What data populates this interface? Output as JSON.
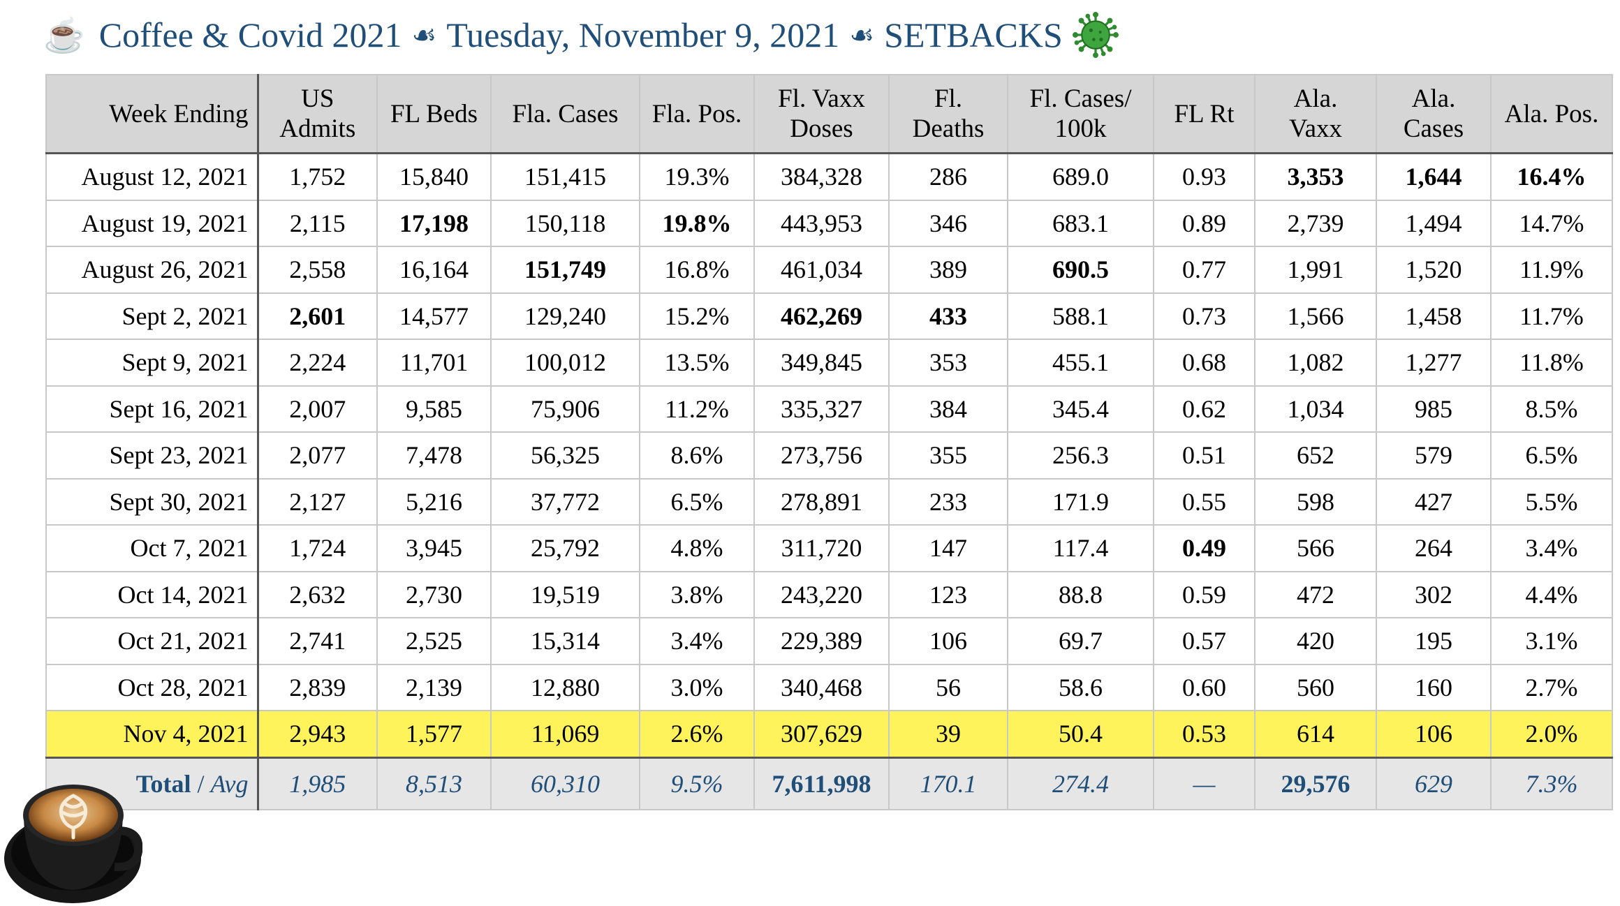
{
  "header": {
    "cup_glyph": "☕",
    "part1": "Coffee & Covid 2021",
    "sep": "☙",
    "part2": "Tuesday, November 9, 2021",
    "part3": "SETBACKS"
  },
  "table": {
    "columns": [
      [
        "Week Ending"
      ],
      [
        "US",
        "Admits"
      ],
      [
        "FL Beds"
      ],
      [
        "Fla. Cases"
      ],
      [
        "Fla. Pos."
      ],
      [
        "Fl. Vaxx",
        "Doses"
      ],
      [
        "Fl.",
        "Deaths"
      ],
      [
        "Fl. Cases/",
        "100k"
      ],
      [
        "FL Rt"
      ],
      [
        "Ala.",
        "Vaxx"
      ],
      [
        "Ala.",
        "Cases"
      ],
      [
        "Ala. Pos."
      ]
    ],
    "rows": [
      {
        "cells": [
          "August 12, 2021",
          "1,752",
          "15,840",
          "151,415",
          "19.3%",
          "384,328",
          "286",
          "689.0",
          "0.93",
          "3,353",
          "1,644",
          "16.4%"
        ],
        "bold": [
          9,
          10,
          11
        ]
      },
      {
        "cells": [
          "August 19, 2021",
          "2,115",
          "17,198",
          "150,118",
          "19.8%",
          "443,953",
          "346",
          "683.1",
          "0.89",
          "2,739",
          "1,494",
          "14.7%"
        ],
        "bold": [
          2,
          4
        ]
      },
      {
        "cells": [
          "August 26, 2021",
          "2,558",
          "16,164",
          "151,749",
          "16.8%",
          "461,034",
          "389",
          "690.5",
          "0.77",
          "1,991",
          "1,520",
          "11.9%"
        ],
        "bold": [
          3,
          7
        ]
      },
      {
        "cells": [
          "Sept 2, 2021",
          "2,601",
          "14,577",
          "129,240",
          "15.2%",
          "462,269",
          "433",
          "588.1",
          "0.73",
          "1,566",
          "1,458",
          "11.7%"
        ],
        "bold": [
          1,
          5,
          6
        ]
      },
      {
        "cells": [
          "Sept 9, 2021",
          "2,224",
          "11,701",
          "100,012",
          "13.5%",
          "349,845",
          "353",
          "455.1",
          "0.68",
          "1,082",
          "1,277",
          "11.8%"
        ],
        "bold": []
      },
      {
        "cells": [
          "Sept 16, 2021",
          "2,007",
          "9,585",
          "75,906",
          "11.2%",
          "335,327",
          "384",
          "345.4",
          "0.62",
          "1,034",
          "985",
          "8.5%"
        ],
        "bold": []
      },
      {
        "cells": [
          "Sept 23, 2021",
          "2,077",
          "7,478",
          "56,325",
          "8.6%",
          "273,756",
          "355",
          "256.3",
          "0.51",
          "652",
          "579",
          "6.5%"
        ],
        "bold": []
      },
      {
        "cells": [
          "Sept 30, 2021",
          "2,127",
          "5,216",
          "37,772",
          "6.5%",
          "278,891",
          "233",
          "171.9",
          "0.55",
          "598",
          "427",
          "5.5%"
        ],
        "bold": []
      },
      {
        "cells": [
          "Oct 7, 2021",
          "1,724",
          "3,945",
          "25,792",
          "4.8%",
          "311,720",
          "147",
          "117.4",
          "0.49",
          "566",
          "264",
          "3.4%"
        ],
        "bold": [
          8
        ]
      },
      {
        "cells": [
          "Oct 14, 2021",
          "2,632",
          "2,730",
          "19,519",
          "3.8%",
          "243,220",
          "123",
          "88.8",
          "0.59",
          "472",
          "302",
          "4.4%"
        ],
        "bold": []
      },
      {
        "cells": [
          "Oct 21, 2021",
          "2,741",
          "2,525",
          "15,314",
          "3.4%",
          "229,389",
          "106",
          "69.7",
          "0.57",
          "420",
          "195",
          "3.1%"
        ],
        "bold": []
      },
      {
        "cells": [
          "Oct 28, 2021",
          "2,839",
          "2,139",
          "12,880",
          "3.0%",
          "340,468",
          "56",
          "58.6",
          "0.60",
          "560",
          "160",
          "2.7%"
        ],
        "bold": []
      },
      {
        "cells": [
          "Nov 4, 2021",
          "2,943",
          "1,577",
          "11,069",
          "2.6%",
          "307,629",
          "39",
          "50.4",
          "0.53",
          "614",
          "106",
          "2.0%"
        ],
        "bold": [],
        "highlight": true
      }
    ],
    "total": {
      "label_total": "Total",
      "label_sep": " / ",
      "label_avg": "Avg",
      "cells": [
        "1,985",
        "8,513",
        "60,310",
        "9.5%",
        "7,611,998",
        "170.1",
        "274.4",
        "—",
        "29,576",
        "629",
        "7.3%"
      ],
      "bold": [
        5,
        9
      ]
    }
  },
  "colors": {
    "title": "#1f4e79",
    "header_bg": "#d6d6d6",
    "highlight": "#fff35c",
    "total_bg": "#e6e6e6",
    "virus": "#2e8b2e"
  },
  "icons": {
    "title_cup": "coffee-cup-icon",
    "separator": "fleuron-icon",
    "virus": "virus-icon",
    "latte": "latte-art-coffee-image"
  }
}
